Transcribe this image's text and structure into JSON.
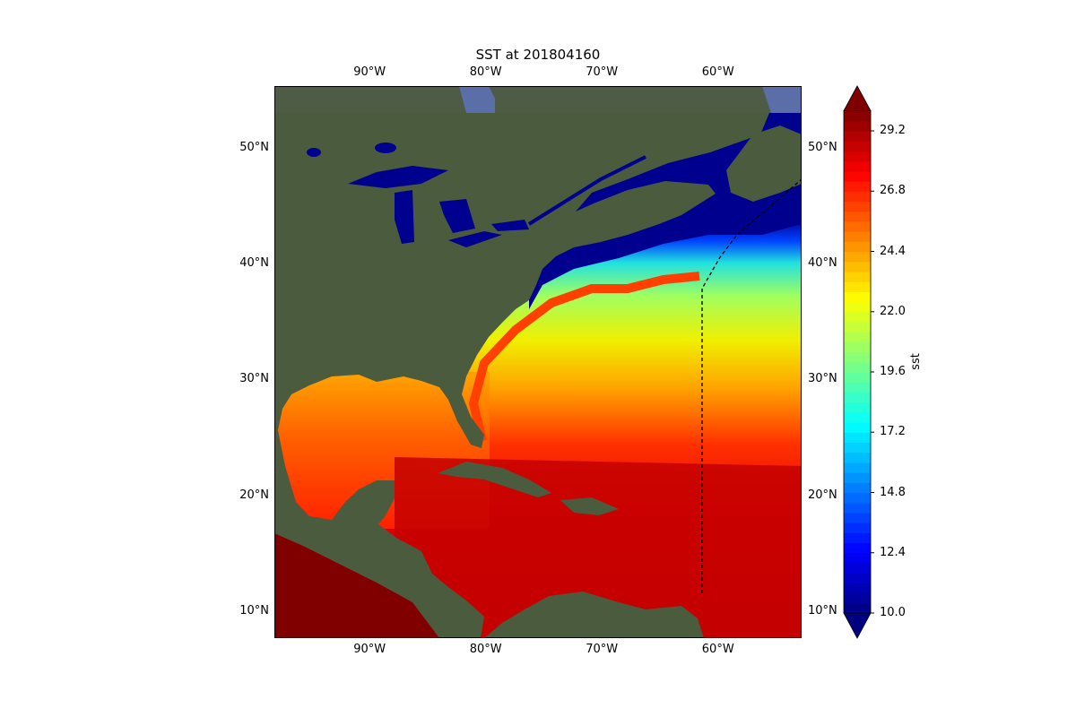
{
  "title": "SST at 201804160",
  "map": {
    "projection": "PlateCarree",
    "extent": {
      "lon": [
        -98.2,
        -52.8
      ],
      "lat": [
        7.7,
        55.3
      ]
    },
    "background": "satellite imagery",
    "lon_ticks": [
      {
        "value": -90,
        "label": "90°W"
      },
      {
        "value": -80,
        "label": "80°W"
      },
      {
        "value": -70,
        "label": "70°W"
      },
      {
        "value": -60,
        "label": "60°W"
      }
    ],
    "lat_ticks": [
      {
        "value": 50,
        "label": "50°N"
      },
      {
        "value": 40,
        "label": "40°N"
      },
      {
        "value": 30,
        "label": "30°N"
      },
      {
        "value": 20,
        "label": "20°N"
      },
      {
        "value": 10,
        "label": "10°N"
      }
    ],
    "boundary_line": {
      "style": "dashed",
      "color": "#000000"
    }
  },
  "colorbar": {
    "label": "sst",
    "cmap": "jet",
    "vmin": 10.0,
    "vmax": 30.0,
    "step": 0.4,
    "extend": "both",
    "ticks": [
      "10.0",
      "12.4",
      "14.8",
      "17.2",
      "19.6",
      "22.0",
      "24.4",
      "26.8",
      "29.2"
    ]
  }
}
